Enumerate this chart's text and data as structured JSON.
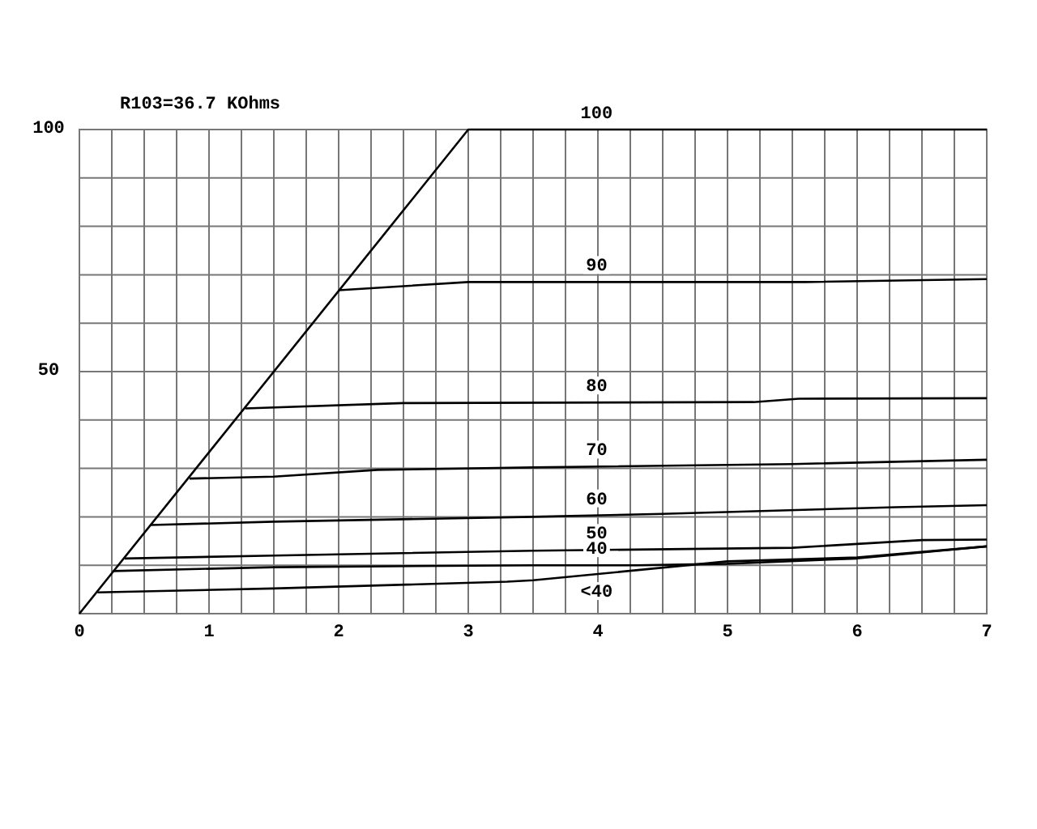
{
  "chart_data": {
    "type": "line",
    "title": "R103=36.7 KOhms",
    "xlim": [
      0,
      7
    ],
    "ylim": [
      0,
      100
    ],
    "xticks": [
      0,
      {
        "value": 0.25,
        "label": null
      },
      {
        "value": 0.5,
        "label": null
      },
      {
        "value": 0.75,
        "label": null
      },
      1,
      {
        "value": 1.25,
        "label": null
      },
      {
        "value": 1.5,
        "label": null
      },
      {
        "value": 1.75,
        "label": null
      },
      2,
      {
        "value": 2.25,
        "label": null
      },
      {
        "value": 2.5,
        "label": null
      },
      {
        "value": 2.75,
        "label": null
      },
      3,
      {
        "value": 3.25,
        "label": null
      },
      {
        "value": 3.5,
        "label": null
      },
      {
        "value": 3.75,
        "label": null
      },
      4,
      {
        "value": 4.25,
        "label": null
      },
      {
        "value": 4.5,
        "label": null
      },
      {
        "value": 4.75,
        "label": null
      },
      5,
      {
        "value": 5.25,
        "label": null
      },
      {
        "value": 5.5,
        "label": null
      },
      {
        "value": 5.75,
        "label": null
      },
      6,
      {
        "value": 6.25,
        "label": null
      },
      {
        "value": 6.5,
        "label": null
      },
      {
        "value": 6.75,
        "label": null
      },
      7
    ],
    "yticks": [
      {
        "value": 0,
        "label": null
      },
      {
        "value": 10,
        "label": null
      },
      {
        "value": 20,
        "label": null
      },
      {
        "value": 30,
        "label": null
      },
      {
        "value": 40,
        "label": null
      },
      50,
      {
        "value": 60,
        "label": null
      },
      {
        "value": 70,
        "label": null
      },
      {
        "value": 80,
        "label": null
      },
      {
        "value": 90,
        "label": null
      },
      100
    ],
    "grid": true,
    "marker": "none",
    "line_style": "solid",
    "series": [
      {
        "name": "100",
        "color": "#000000",
        "x": [
          0,
          3,
          7
        ],
        "values": [
          0,
          100,
          100
        ]
      },
      {
        "name": "90",
        "color": "#000000",
        "x": [
          2,
          3,
          5.6,
          7
        ],
        "values": [
          66.8,
          68.5,
          68.5,
          69.1
        ]
      },
      {
        "name": "80",
        "color": "#000000",
        "x": [
          1.28,
          2.5,
          5.2,
          5.55,
          7
        ],
        "values": [
          42.4,
          43.5,
          43.7,
          44.4,
          44.5
        ]
      },
      {
        "name": "70",
        "color": "#000000",
        "x": [
          0.85,
          1.5,
          2.3,
          3.5,
          5.5,
          7
        ],
        "values": [
          27.9,
          28.3,
          29.7,
          30.2,
          30.9,
          31.8
        ]
      },
      {
        "name": "60",
        "color": "#000000",
        "x": [
          0.55,
          1.5,
          3.5,
          4.5,
          6.3,
          7
        ],
        "values": [
          18.3,
          19,
          20,
          20.6,
          22,
          22.4
        ]
      },
      {
        "name": "50",
        "color": "#000000",
        "x": [
          0.35,
          1.5,
          3.5,
          5.5,
          6.5,
          7
        ],
        "values": [
          11.4,
          12,
          13,
          13.6,
          15.2,
          15.3
        ]
      },
      {
        "name": "40",
        "color": "#000000",
        "x": [
          0.26,
          1.5,
          3.5,
          4.3,
          5,
          6,
          7
        ],
        "values": [
          8.8,
          9.6,
          10,
          10,
          10.3,
          11.4,
          13.9
        ]
      },
      {
        "name": "<40",
        "color": "#000000",
        "x": [
          0.14,
          1.5,
          3.3,
          3.5,
          5,
          6,
          7
        ],
        "values": [
          4.4,
          5.2,
          6.6,
          6.9,
          10.8,
          11.6,
          13.9
        ]
      }
    ]
  }
}
